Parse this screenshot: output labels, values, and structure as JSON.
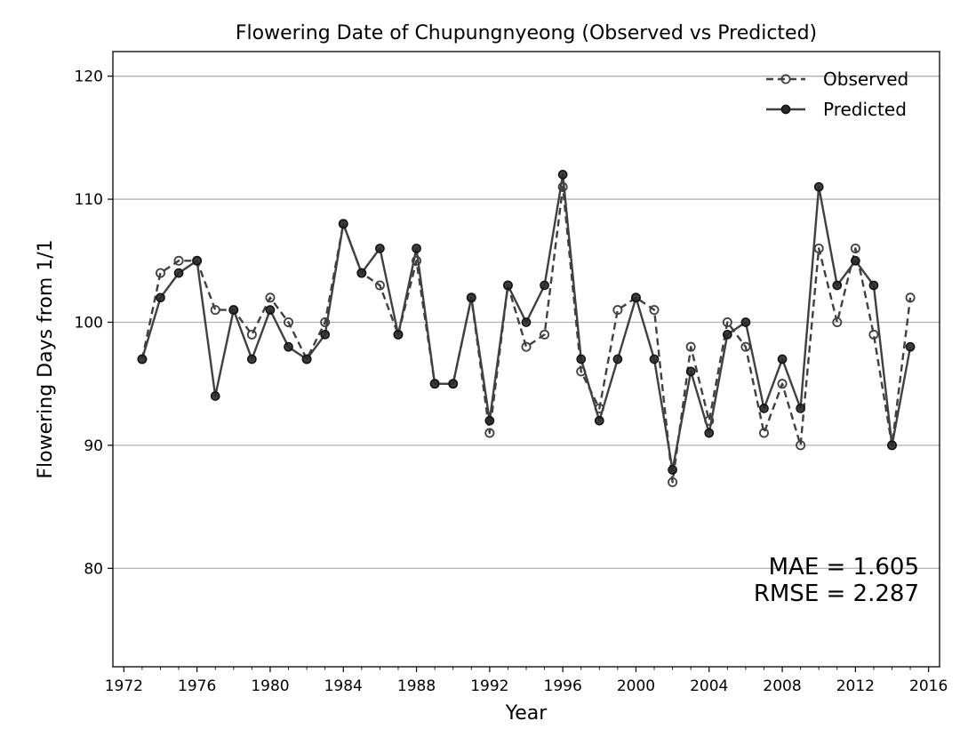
{
  "chart_data": {
    "type": "line",
    "title": "Flowering Date of Chupungnyeong (Observed vs Predicted)",
    "xlabel": "Year",
    "ylabel": "Flowering Days from 1/1",
    "xlim": [
      1971.4,
      2016.6
    ],
    "ylim": [
      72,
      122
    ],
    "xticks": [
      1972,
      1976,
      1980,
      1984,
      1988,
      1992,
      1996,
      2000,
      2004,
      2008,
      2012,
      2016
    ],
    "yticks": [
      80,
      90,
      100,
      110,
      120
    ],
    "grid": "horizontal",
    "legend_position": "top-right",
    "x": [
      1973,
      1974,
      1975,
      1976,
      1977,
      1978,
      1979,
      1980,
      1981,
      1982,
      1983,
      1984,
      1985,
      1986,
      1987,
      1988,
      1989,
      1990,
      1991,
      1992,
      1993,
      1994,
      1995,
      1996,
      1997,
      1998,
      1999,
      2000,
      2001,
      2002,
      2003,
      2004,
      2005,
      2006,
      2007,
      2008,
      2009,
      2010,
      2011,
      2012,
      2013,
      2014,
      2015
    ],
    "series": [
      {
        "name": "Observed",
        "style": "dashed-open-marker",
        "values": [
          97,
          104,
          105,
          105,
          101,
          101,
          99,
          102,
          100,
          97,
          100,
          108,
          104,
          103,
          99,
          105,
          95,
          95,
          102,
          91,
          103,
          98,
          99,
          111,
          96,
          93,
          101,
          102,
          101,
          87,
          98,
          92,
          100,
          98,
          91,
          95,
          90,
          106,
          100,
          106,
          99,
          90,
          102
        ]
      },
      {
        "name": "Predicted",
        "style": "solid-filled-marker",
        "values": [
          97,
          102,
          104,
          105,
          94,
          101,
          97,
          101,
          98,
          97,
          99,
          108,
          104,
          106,
          99,
          106,
          95,
          95,
          102,
          92,
          103,
          100,
          103,
          112,
          97,
          92,
          97,
          102,
          97,
          88,
          96,
          91,
          99,
          100,
          93,
          97,
          93,
          111,
          103,
          105,
          103,
          90,
          98
        ]
      }
    ],
    "annotations": [
      "MAE = 1.605",
      "RMSE = 2.287"
    ],
    "line_color": "#404040"
  }
}
